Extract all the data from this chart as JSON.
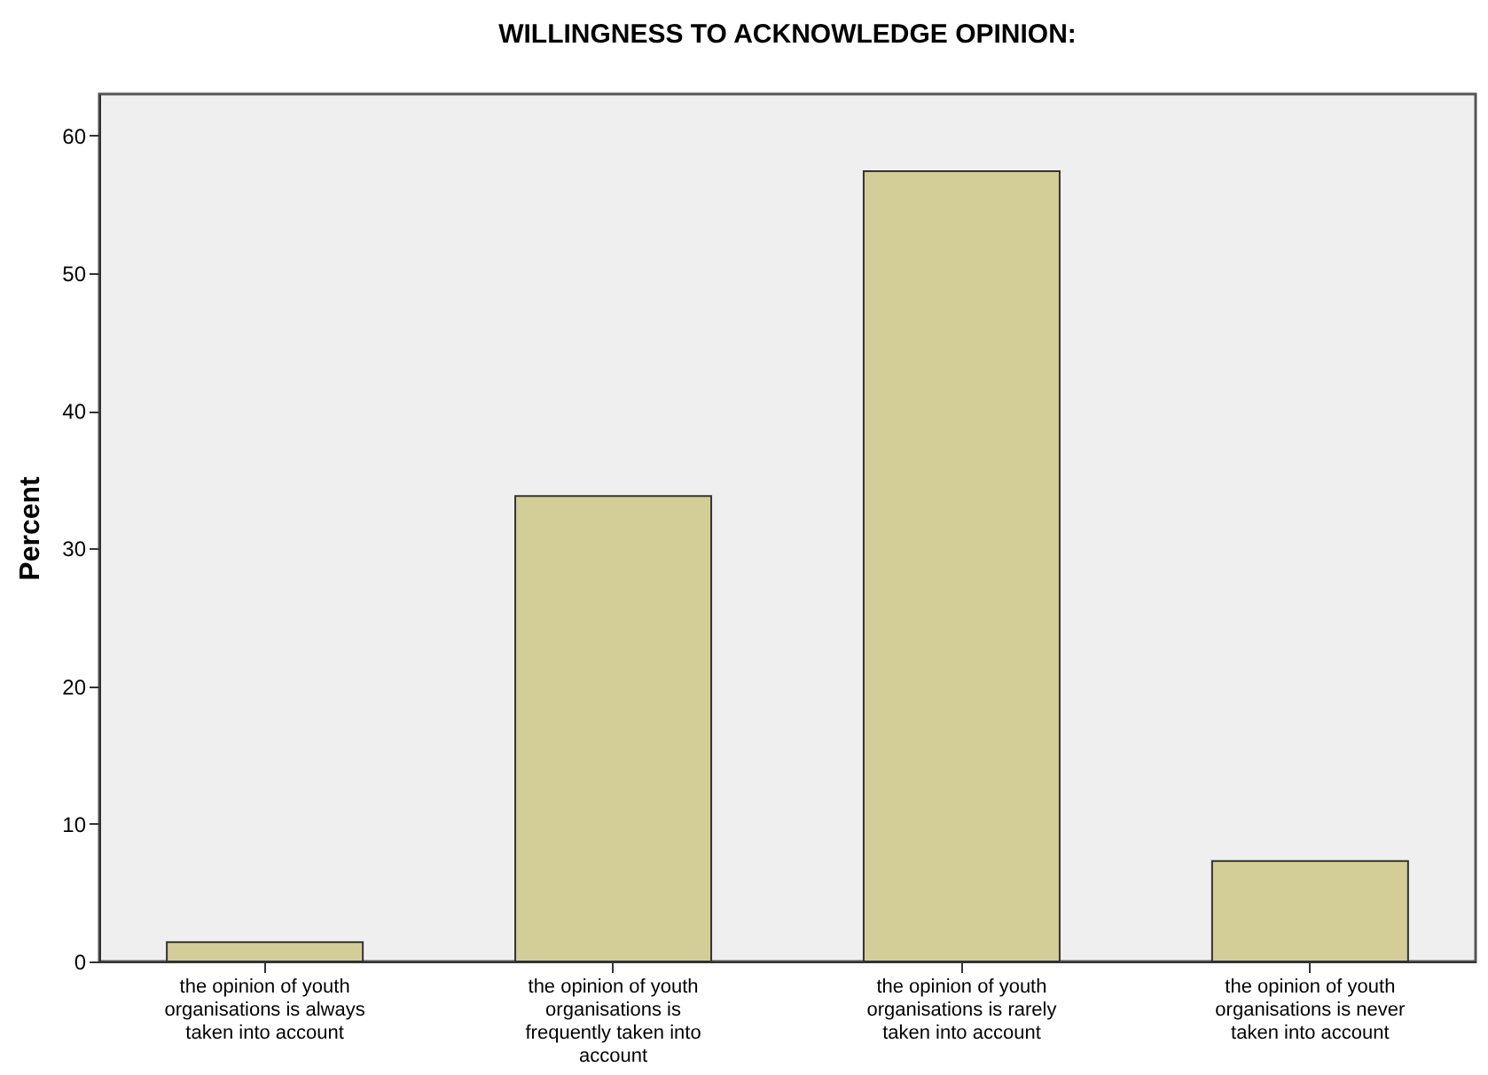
{
  "chart_data": {
    "type": "bar",
    "title": "WILLINGNESS TO ACKNOWLEDGE OPINION:",
    "ylabel": "Percent",
    "categories": [
      "the opinion of youth organisations is always taken into account",
      "the opinion of youth organisations is frequently taken into account",
      "the opinion of youth organisations is rarely taken into account",
      "the opinion of youth organisations is never taken into account"
    ],
    "values": [
      1.4,
      33.8,
      57.4,
      7.3
    ],
    "color": "#d3ce97",
    "ylim": [
      0,
      63
    ],
    "yticks": [
      0,
      10,
      20,
      30,
      40,
      50,
      60
    ],
    "grid": false
  }
}
